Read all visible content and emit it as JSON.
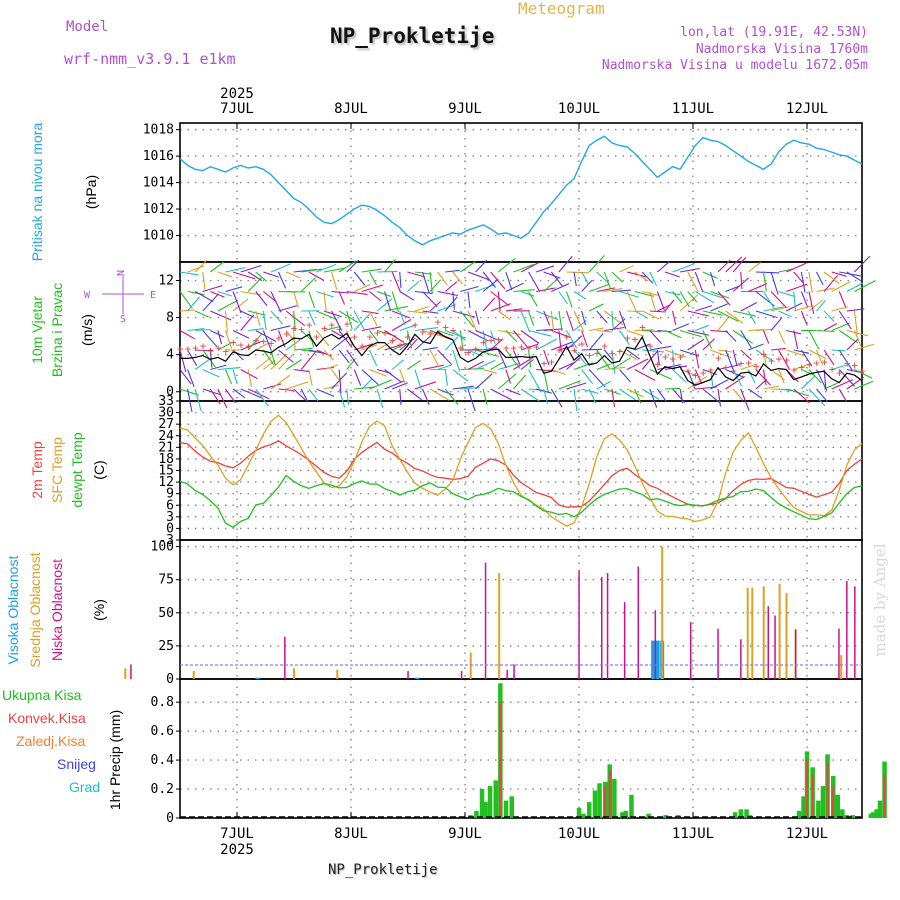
{
  "header": {
    "model_label": "Model",
    "model_name": "wrf-nmm_v3.9.1 e1km",
    "meteogram_label": "Meteogram",
    "title": "NP_Prokletije",
    "lonlat": "lon,lat (19.91E, 42.53N)",
    "altitude": "Nadmorska Visina 1760m",
    "model_altitude": "Nadmorska Visina u modelu 1672.05m",
    "footer_title": "NP_Prokletije",
    "watermark": "made by Angel",
    "year": "2025"
  },
  "colors": {
    "pressure": "#22a8e6",
    "windspeed": "#000000",
    "t2m": "#f04040",
    "sfc": "#e0a020",
    "dew": "#20c020",
    "high_cloud": "#1aa0e6",
    "mid_cloud": "#e0a020",
    "low_cloud": "#d0108a",
    "precip_total": "#20c020",
    "precip_conv": "#f04040",
    "precip_strat": "#f08030",
    "snow": "#4040e0",
    "graupel": "#20c0c0"
  },
  "chart_data": [
    {
      "type": "line",
      "panel": "pressure",
      "ylabel_main": "Pritisak na nivou mora",
      "ylabel_unit": "(hPa)",
      "x_ticks": [
        "7JUL",
        "8JUL",
        "9JUL",
        "10JUL",
        "11JUL",
        "12JUL"
      ],
      "ylim": [
        1008,
        1018.5
      ],
      "y_ticks": [
        "1010",
        "1012",
        "1014",
        "1016",
        "1018"
      ],
      "series": [
        {
          "values": [
            1015.8,
            1015.3,
            1015.0,
            1014.9,
            1015.2,
            1015.0,
            1014.8,
            1015.1,
            1015.3,
            1015.1,
            1015.2,
            1015.0,
            1014.6,
            1014.0,
            1013.4,
            1012.8,
            1012.5,
            1012.0,
            1011.4,
            1011.0,
            1010.9,
            1011.2,
            1011.6,
            1012.0,
            1012.3,
            1012.2,
            1011.9,
            1011.5,
            1011.0,
            1010.6,
            1010.0,
            1009.6,
            1009.3,
            1009.6,
            1009.8,
            1010.0,
            1010.2,
            1010.1,
            1010.4,
            1010.6,
            1010.8,
            1010.5,
            1010.1,
            1010.2,
            1010.0,
            1009.8,
            1010.2,
            1011.0,
            1011.8,
            1012.4,
            1013.1,
            1013.8,
            1014.3,
            1015.6,
            1016.8,
            1017.2,
            1017.5,
            1017.0,
            1016.8,
            1016.7,
            1016.2,
            1015.6,
            1015.0,
            1014.4,
            1014.8,
            1015.2,
            1015.0,
            1015.9,
            1016.8,
            1017.4,
            1017.2,
            1017.1,
            1016.8,
            1016.4,
            1016.0,
            1015.6,
            1015.3,
            1015.0,
            1015.4,
            1016.3,
            1016.9,
            1017.2,
            1017.0,
            1016.9,
            1016.6,
            1016.5,
            1016.3,
            1016.1,
            1016.0,
            1015.7,
            1015.4
          ]
        }
      ]
    },
    {
      "type": "line",
      "panel": "wind",
      "ylabel_main": "10m Vjetar",
      "ylabel_main2": "Brzina i Pravac",
      "ylabel_unit": "(m/s)",
      "compass": {
        "n": "N",
        "w": "W",
        "e": "E",
        "s": "S"
      },
      "ylim": [
        -1,
        14
      ],
      "y_ticks": [
        "0",
        "4",
        "8",
        "12"
      ],
      "series": [
        {
          "values": [
            3.6,
            3.6,
            3.7,
            3.9,
            3.5,
            3.7,
            3.3,
            4.3,
            4.0,
            3.9,
            4.5,
            4.4,
            4.2,
            4.8,
            5.2,
            5.8,
            5.7,
            6.2,
            4.9,
            5.8,
            6.2,
            5.7,
            6.3,
            4.9,
            3.9,
            4.9,
            5.3,
            5.3,
            4.5,
            4.0,
            4.9,
            6.2,
            5.4,
            5.2,
            6.5,
            5.9,
            5.6,
            3.7,
            3.2,
            3.6,
            4.3,
            4.5,
            4.6,
            3.7,
            3.7,
            3.8,
            3.7,
            3.8,
            2.0,
            2.2,
            3.5,
            4.9,
            3.4,
            4.1,
            2.9,
            3.1,
            3.9,
            3.1,
            3.3,
            4.8,
            4.6,
            5.9,
            3.9,
            1.9,
            2.7,
            2.5,
            2.7,
            1.2,
            0.7,
            1.0,
            1.3,
            2.6,
            1.6,
            1.2,
            2.0,
            2.1,
            1.7,
            3.0,
            2.3,
            2.5,
            2.4,
            1.3,
            1.6,
            1.9,
            2.1,
            2.2,
            1.4,
            1.0,
            2.0,
            1.8,
            1.2
          ]
        }
      ]
    },
    {
      "type": "line",
      "panel": "temperature",
      "ylabel_main": "2m Temp",
      "ylabel_main2": "SFC Temp",
      "ylabel_main3": "dewpt Temp",
      "ylabel_unit": "(C)",
      "ylim": [
        -3,
        33
      ],
      "y_ticks": [
        "-3",
        "0",
        "3",
        "6",
        "9",
        "12",
        "15",
        "18",
        "21",
        "24",
        "27",
        "30",
        "33"
      ],
      "series": [
        {
          "key": "t2m",
          "values": [
            22.2,
            21.9,
            20.0,
            18.5,
            17.4,
            17.0,
            16.2,
            15.7,
            16.9,
            18.7,
            20.2,
            21.1,
            21.7,
            22.7,
            21.4,
            20.3,
            19.1,
            17.7,
            16.1,
            14.5,
            13.5,
            13.0,
            14.8,
            17.9,
            19.7,
            21.0,
            22.3,
            20.5,
            19.5,
            18.0,
            16.9,
            15.5,
            14.9,
            13.9,
            13.2,
            13.0,
            12.7,
            12.9,
            13.5,
            15.8,
            16.9,
            18.0,
            17.5,
            16.4,
            13.8,
            11.9,
            10.6,
            9.3,
            8.7,
            8.0,
            6.1,
            5.5,
            5.6,
            5.7,
            7.1,
            9.2,
            11.4,
            13.6,
            15.0,
            15.6,
            14.0,
            12.6,
            11.1,
            10.4,
            9.2,
            8.2,
            7.2,
            6.3,
            6.0,
            5.9,
            6.2,
            6.6,
            7.7,
            9.8,
            11.4,
            12.4,
            12.8,
            12.7,
            12.9,
            11.8,
            10.6,
            10.4,
            9.6,
            8.8,
            8.1,
            8.7,
            9.4,
            11.7,
            15.0,
            16.6,
            18.0
          ]
        },
        {
          "key": "sfc",
          "values": [
            26.0,
            25.5,
            23.4,
            21.5,
            18.8,
            16.4,
            13.0,
            11.3,
            12.6,
            16.4,
            20.2,
            24.4,
            27.7,
            29.3,
            27.4,
            24.2,
            20.8,
            17.4,
            14.6,
            11.8,
            10.6,
            11.0,
            13.3,
            17.4,
            22.4,
            26.4,
            27.8,
            26.6,
            21.4,
            17.9,
            14.6,
            11.7,
            10.4,
            9.4,
            8.6,
            10.2,
            12.4,
            18.0,
            22.2,
            26.1,
            27.2,
            25.8,
            22.0,
            16.4,
            11.9,
            8.6,
            7.2,
            6.1,
            5.0,
            3.0,
            1.8,
            0.6,
            1.4,
            5.5,
            11.5,
            18.6,
            23.2,
            24.5,
            22.9,
            20.4,
            16.3,
            11.7,
            8.0,
            4.5,
            3.2,
            3.1,
            2.7,
            2.5,
            1.8,
            2.2,
            3.0,
            7.0,
            14.3,
            19.8,
            22.8,
            24.7,
            21.0,
            16.8,
            13.1,
            10.3,
            7.7,
            5.4,
            4.4,
            3.5,
            3.5,
            3.3,
            4.7,
            10.0,
            16.4,
            20.3,
            22.0
          ]
        },
        {
          "key": "dew",
          "values": [
            12.2,
            11.5,
            9.8,
            8.8,
            7.2,
            5.3,
            1.4,
            0.3,
            1.8,
            2.6,
            6.1,
            6.5,
            8.5,
            10.7,
            13.7,
            12.2,
            11.1,
            10.4,
            11.1,
            11.6,
            11.2,
            10.5,
            10.6,
            11.6,
            12.3,
            11.5,
            11.5,
            10.3,
            9.6,
            8.6,
            9.5,
            9.9,
            11.1,
            11.8,
            10.7,
            10.6,
            9.0,
            8.2,
            7.4,
            8.5,
            8.8,
            9.4,
            10.4,
            9.8,
            9.5,
            8.3,
            7.5,
            5.8,
            4.6,
            4.2,
            3.6,
            3.9,
            3.0,
            4.2,
            6.1,
            7.7,
            8.8,
            9.5,
            10.2,
            10.3,
            9.5,
            8.8,
            7.4,
            7.7,
            7.1,
            6.3,
            5.9,
            6.2,
            6.0,
            5.8,
            6.4,
            7.3,
            7.8,
            8.3,
            9.5,
            9.6,
            10.2,
            9.8,
            8.0,
            6.4,
            5.3,
            4.3,
            3.4,
            2.5,
            2.3,
            3.1,
            4.0,
            6.6,
            9.0,
            10.6,
            11.0
          ]
        }
      ]
    },
    {
      "type": "bar",
      "panel": "cloud",
      "ylabel_main": "Visoka Oblacnost",
      "ylabel_main2": "Srednja Oblacnost",
      "ylabel_main3": "Niska Oblacnost",
      "ylabel_unit": "(%)",
      "ylim": [
        0,
        105
      ],
      "y_ticks": [
        "0",
        "25",
        "50",
        "75",
        "100"
      ],
      "series": [
        {
          "key": "high",
          "bars": [
            [
              1.18,
              1
            ],
            [
              2.58,
              1
            ],
            [
              4.65,
              29
            ],
            [
              4.69,
              29
            ],
            [
              4.73,
              29
            ]
          ]
        },
        {
          "key": "mid",
          "bars": [
            [
              0.02,
              8
            ],
            [
              0.62,
              6
            ],
            [
              1.5,
              8
            ],
            [
              1.88,
              7
            ],
            [
              3.05,
              20
            ],
            [
              3.3,
              80
            ],
            [
              4.73,
              100
            ],
            [
              5.48,
              69
            ],
            [
              5.52,
              69
            ],
            [
              5.62,
              70
            ],
            [
              5.76,
              72
            ],
            [
              5.82,
              65
            ],
            [
              5.9,
              38
            ],
            [
              6.3,
              18
            ]
          ]
        },
        {
          "key": "low",
          "bars": [
            [
              0.07,
              11
            ],
            [
              1.42,
              32
            ],
            [
              2.5,
              6
            ],
            [
              2.97,
              6
            ],
            [
              3.18,
              88
            ],
            [
              3.37,
              7
            ],
            [
              3.43,
              11
            ],
            [
              4.0,
              82
            ],
            [
              4.2,
              77
            ],
            [
              4.25,
              80
            ],
            [
              4.4,
              58
            ],
            [
              4.52,
              85
            ],
            [
              4.67,
              52
            ],
            [
              4.98,
              43
            ],
            [
              5.22,
              38
            ],
            [
              5.42,
              30
            ],
            [
              5.66,
              55
            ],
            [
              5.72,
              48
            ],
            [
              5.9,
              37
            ],
            [
              6.28,
              38
            ],
            [
              6.35,
              74
            ],
            [
              6.42,
              70
            ]
          ]
        }
      ]
    },
    {
      "type": "bar",
      "panel": "precip",
      "ylabel_main": "1hr Precip",
      "ylabel_unit": "(mm)",
      "legend": [
        "Ukupna Kisa",
        "Konvek.Kisa",
        "Zaledj.Kisa",
        "Snijeg",
        "Grad"
      ],
      "ylim": [
        0,
        0.96
      ],
      "y_ticks": [
        "0",
        "0.2",
        "0.4",
        "0.6",
        "0.8"
      ],
      "series": [
        {
          "key": "total",
          "bars": [
            [
              3.05,
              0.02
            ],
            [
              3.1,
              0.05
            ],
            [
              3.15,
              0.2
            ],
            [
              3.18,
              0.11
            ],
            [
              3.22,
              0.22
            ],
            [
              3.27,
              0.26
            ],
            [
              3.31,
              0.93
            ],
            [
              3.36,
              0.12
            ],
            [
              3.41,
              0.15
            ],
            [
              4.0,
              0.07
            ],
            [
              4.04,
              0.03
            ],
            [
              4.09,
              0.11
            ],
            [
              4.14,
              0.19
            ],
            [
              4.18,
              0.24
            ],
            [
              4.23,
              0.25
            ],
            [
              4.27,
              0.37
            ],
            [
              4.31,
              0.27
            ],
            [
              4.38,
              0.04
            ],
            [
              4.41,
              0.05
            ],
            [
              4.46,
              0.16
            ],
            [
              4.61,
              0.03
            ],
            [
              4.76,
              0.02
            ],
            [
              4.87,
              0.02
            ],
            [
              5.37,
              0.04
            ],
            [
              5.42,
              0.06
            ],
            [
              5.47,
              0.06
            ],
            [
              5.5,
              0.02
            ],
            [
              5.93,
              0.05
            ],
            [
              5.97,
              0.15
            ],
            [
              6.0,
              0.46
            ],
            [
              6.05,
              0.35
            ],
            [
              6.1,
              0.12
            ],
            [
              6.14,
              0.22
            ],
            [
              6.18,
              0.44
            ],
            [
              6.23,
              0.29
            ],
            [
              6.27,
              0.16
            ],
            [
              6.31,
              0.06
            ],
            [
              6.35,
              0.02
            ],
            [
              6.4,
              0.02
            ],
            [
              6.56,
              0.03
            ],
            [
              6.58,
              0.04
            ],
            [
              6.61,
              0.06
            ],
            [
              6.64,
              0.12
            ],
            [
              6.68,
              0.39
            ]
          ]
        },
        {
          "key": "conv",
          "bars": [
            [
              3.31,
              0.8
            ],
            [
              4.23,
              0.22
            ],
            [
              4.27,
              0.33
            ],
            [
              6.0,
              0.4
            ],
            [
              6.05,
              0.3
            ],
            [
              6.18,
              0.38
            ],
            [
              6.23,
              0.22
            ],
            [
              6.68,
              0.3
            ]
          ]
        }
      ]
    }
  ]
}
